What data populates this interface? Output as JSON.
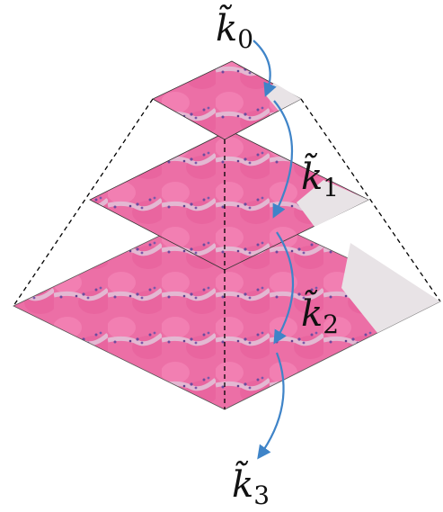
{
  "nodes": [
    {
      "symbol": "k̃",
      "subscript": "0"
    },
    {
      "symbol": "k̃",
      "subscript": "1"
    },
    {
      "symbol": "k̃",
      "subscript": "2"
    },
    {
      "symbol": "k̃",
      "subscript": "3"
    }
  ]
}
